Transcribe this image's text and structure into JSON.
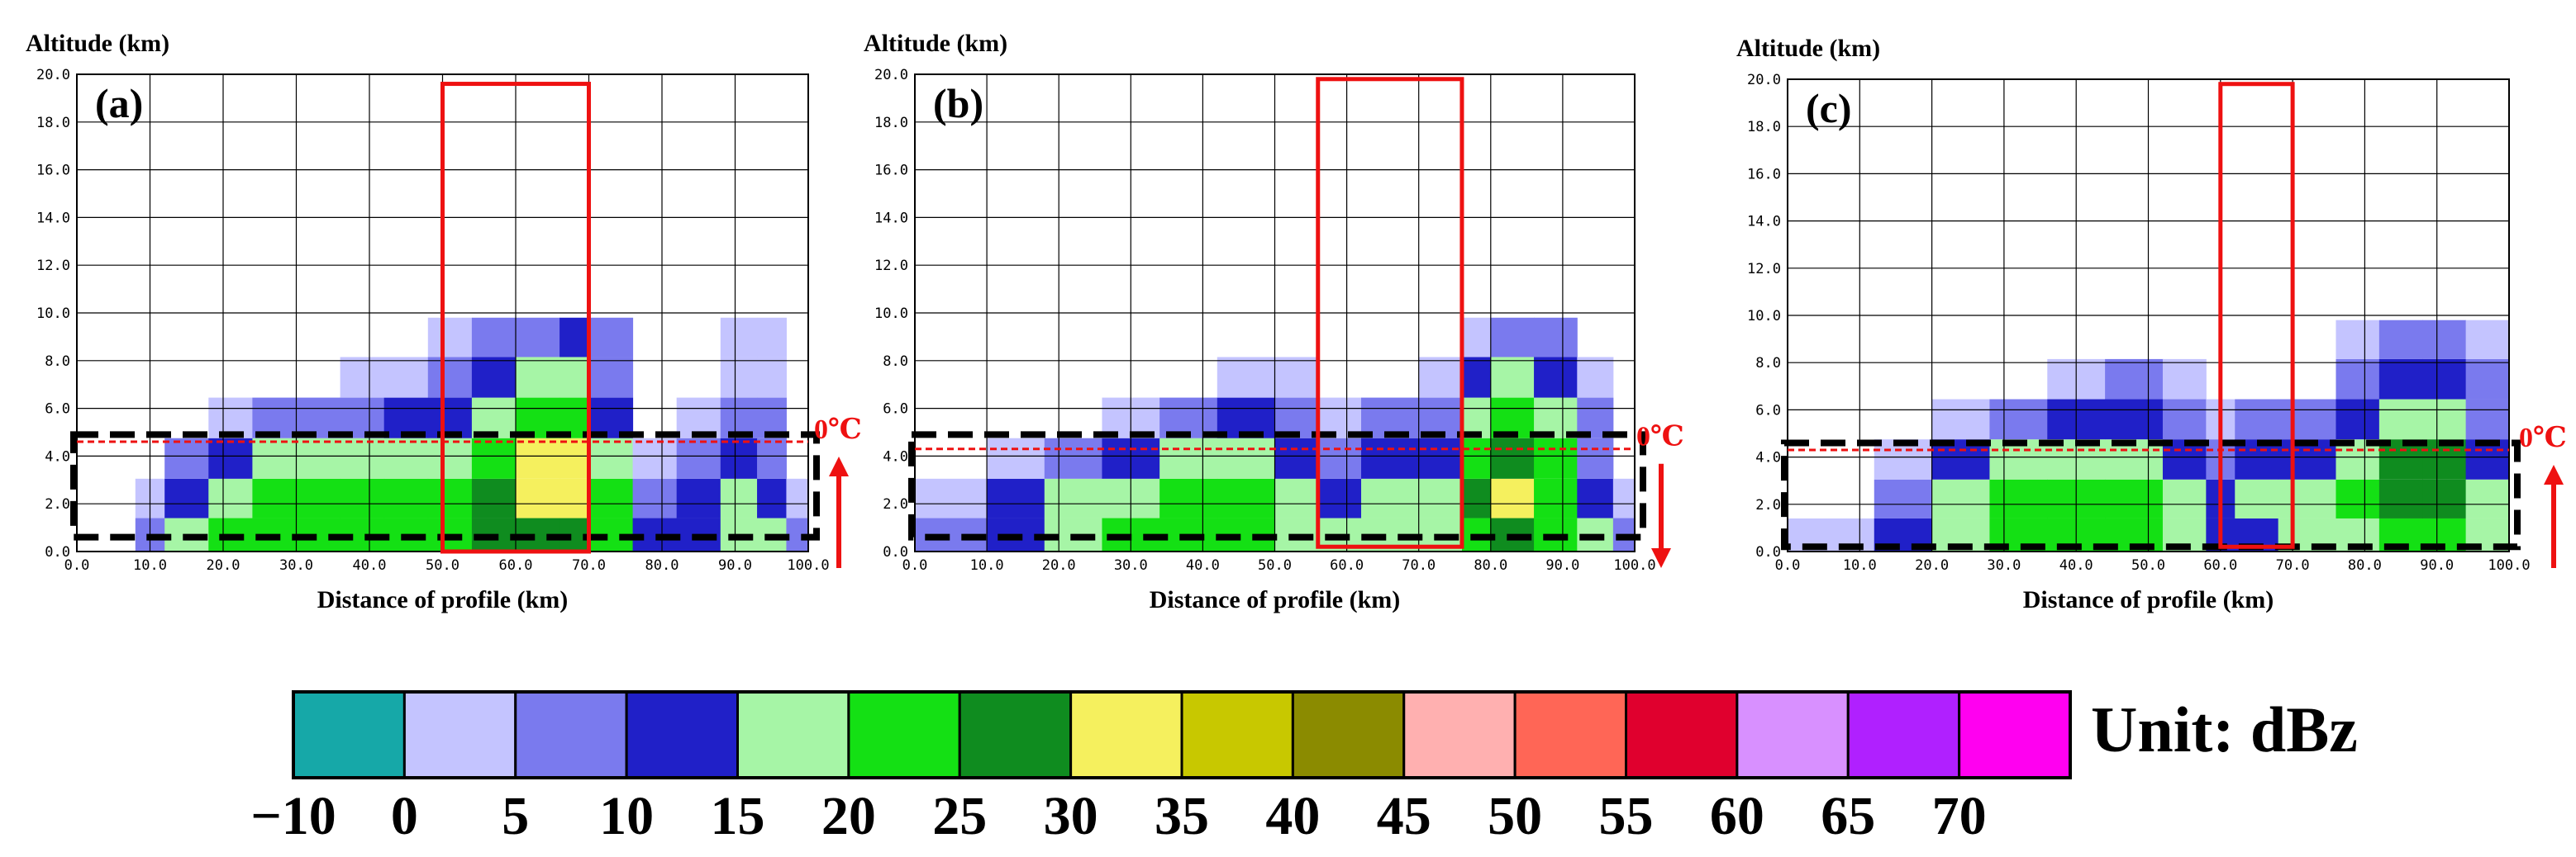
{
  "figure": {
    "unit_label": "Unit: dBz",
    "freezing_level_label": "0℃"
  },
  "chart_data": [
    {
      "type": "heatmap",
      "panel": "(a)",
      "ylabel": "Altitude (km)",
      "xlabel": "Distance of profile (km)",
      "xlim": [
        0,
        100
      ],
      "ylim": [
        0,
        20
      ],
      "x_ticks": [
        "0.0",
        "10.0",
        "20.0",
        "30.0",
        "40.0",
        "50.0",
        "60.0",
        "70.0",
        "80.0",
        "90.0",
        "100.0"
      ],
      "y_ticks": [
        "0.0",
        "2.0",
        "4.0",
        "6.0",
        "8.0",
        "10.0",
        "12.0",
        "14.0",
        "16.0",
        "18.0",
        "20.0"
      ],
      "grid": true,
      "freezing_level_km": 4.6,
      "red_box": {
        "x": [
          50,
          70
        ],
        "y": [
          0,
          19.6
        ]
      },
      "black_box": {
        "x": [
          0,
          100
        ],
        "y": [
          0.6,
          4.9
        ]
      },
      "arrow": "up",
      "reflectivity_dbz": [
        {
          "x": 0,
          "column": [
            0,
            0,
            0,
            0,
            0,
            0
          ]
        },
        {
          "x": 8,
          "column": [
            0,
            0,
            0,
            0,
            0,
            0
          ]
        },
        {
          "x": 12,
          "column": [
            10,
            5,
            0,
            0,
            0,
            0
          ]
        },
        {
          "x": 18,
          "column": [
            20,
            15,
            10,
            0,
            0,
            0
          ]
        },
        {
          "x": 24,
          "column": [
            20,
            20,
            15,
            5,
            0,
            0
          ]
        },
        {
          "x": 30,
          "column": [
            20,
            20,
            15,
            10,
            0,
            0
          ]
        },
        {
          "x": 36,
          "column": [
            20,
            20,
            15,
            5,
            0,
            0
          ]
        },
        {
          "x": 42,
          "column": [
            20,
            20,
            15,
            10,
            5,
            0
          ]
        },
        {
          "x": 48,
          "column": [
            20,
            20,
            15,
            10,
            0,
            0
          ]
        },
        {
          "x": 54,
          "column": [
            25,
            25,
            20,
            15,
            10,
            5
          ]
        },
        {
          "x": 60,
          "column": [
            25,
            30,
            25,
            20,
            15,
            5
          ]
        },
        {
          "x": 66,
          "column": [
            25,
            30,
            35,
            20,
            15,
            10
          ]
        },
        {
          "x": 70,
          "column": [
            25,
            30,
            25,
            20,
            15,
            10
          ]
        },
        {
          "x": 76,
          "column": [
            15,
            10,
            5,
            0,
            0,
            0
          ]
        },
        {
          "x": 82,
          "column": [
            10,
            5,
            0,
            0,
            0,
            0
          ]
        },
        {
          "x": 88,
          "column": [
            15,
            15,
            10,
            5,
            0,
            0
          ]
        },
        {
          "x": 93,
          "column": [
            20,
            20,
            15,
            10,
            5,
            5
          ]
        },
        {
          "x": 97,
          "column": [
            10,
            5,
            0,
            0,
            0,
            0
          ]
        },
        {
          "x": 100,
          "column": [
            0,
            0,
            0,
            0,
            0,
            0
          ]
        }
      ]
    },
    {
      "type": "heatmap",
      "panel": "(b)",
      "ylabel": "Altitude (km)",
      "xlabel": "Distance of profile (km)",
      "xlim": [
        0,
        100
      ],
      "ylim": [
        0,
        20
      ],
      "x_ticks": [
        "0.0",
        "10.0",
        "20.0",
        "30.0",
        "40.0",
        "50.0",
        "60.0",
        "70.0",
        "80.0",
        "90.0",
        "100.0"
      ],
      "y_ticks": [
        "0.0",
        "2.0",
        "4.0",
        "6.0",
        "8.0",
        "10.0",
        "12.0",
        "14.0",
        "16.0",
        "18.0",
        "20.0"
      ],
      "grid": true,
      "freezing_level_km": 4.3,
      "red_box": {
        "x": [
          56,
          76
        ],
        "y": [
          0.2,
          19.8
        ]
      },
      "black_box": {
        "x": [
          0,
          100
        ],
        "y": [
          0.6,
          4.9
        ]
      },
      "arrow": "down",
      "reflectivity_dbz": [
        {
          "x": 0,
          "column": [
            0,
            0,
            0,
            0,
            0,
            0
          ]
        },
        {
          "x": 10,
          "column": [
            10,
            5,
            0,
            0,
            0,
            0
          ]
        },
        {
          "x": 18,
          "column": [
            15,
            15,
            5,
            0,
            0,
            0
          ]
        },
        {
          "x": 26,
          "column": [
            20,
            15,
            10,
            0,
            0,
            0
          ]
        },
        {
          "x": 34,
          "column": [
            20,
            20,
            15,
            5,
            0,
            0
          ]
        },
        {
          "x": 42,
          "column": [
            20,
            20,
            15,
            10,
            0,
            0
          ]
        },
        {
          "x": 50,
          "column": [
            20,
            20,
            15,
            10,
            5,
            0
          ]
        },
        {
          "x": 56,
          "column": [
            15,
            10,
            5,
            0,
            0,
            0
          ]
        },
        {
          "x": 62,
          "column": [
            15,
            15,
            10,
            5,
            0,
            0
          ]
        },
        {
          "x": 70,
          "column": [
            15,
            15,
            10,
            5,
            0,
            0
          ]
        },
        {
          "x": 76,
          "column": [
            20,
            20,
            15,
            10,
            5,
            0
          ]
        },
        {
          "x": 80,
          "column": [
            25,
            35,
            30,
            20,
            15,
            5
          ]
        },
        {
          "x": 86,
          "column": [
            25,
            25,
            25,
            20,
            15,
            10
          ]
        },
        {
          "x": 92,
          "column": [
            20,
            20,
            15,
            10,
            5,
            0
          ]
        },
        {
          "x": 97,
          "column": [
            10,
            5,
            0,
            0,
            0,
            0
          ]
        },
        {
          "x": 100,
          "column": [
            0,
            0,
            0,
            0,
            0,
            0
          ]
        }
      ]
    },
    {
      "type": "heatmap",
      "panel": "(c)",
      "ylabel": "Altitude (km)",
      "xlabel": "Distance of profile (km)",
      "xlim": [
        0,
        100
      ],
      "ylim": [
        0,
        20
      ],
      "x_ticks": [
        "0.0",
        "10.0",
        "20.0",
        "30.0",
        "40.0",
        "50.0",
        "60.0",
        "70.0",
        "80.0",
        "90.0",
        "100.0"
      ],
      "y_ticks": [
        "0.0",
        "2.0",
        "4.0",
        "6.0",
        "8.0",
        "10.0",
        "12.0",
        "14.0",
        "16.0",
        "18.0",
        "20.0"
      ],
      "grid": true,
      "freezing_level_km": 4.3,
      "red_box": {
        "x": [
          60,
          70
        ],
        "y": [
          0.2,
          19.8
        ]
      },
      "black_box": {
        "x": [
          0,
          100
        ],
        "y": [
          0.2,
          4.6
        ]
      },
      "arrow": "up",
      "reflectivity_dbz": [
        {
          "x": 0,
          "column": [
            0,
            0,
            0,
            0,
            0,
            0
          ]
        },
        {
          "x": 12,
          "column": [
            5,
            0,
            0,
            0,
            0,
            0
          ]
        },
        {
          "x": 20,
          "column": [
            15,
            10,
            5,
            0,
            0,
            0
          ]
        },
        {
          "x": 28,
          "column": [
            20,
            20,
            15,
            5,
            0,
            0
          ]
        },
        {
          "x": 36,
          "column": [
            20,
            20,
            15,
            10,
            0,
            0
          ]
        },
        {
          "x": 44,
          "column": [
            20,
            20,
            20,
            10,
            5,
            0
          ]
        },
        {
          "x": 52,
          "column": [
            20,
            25,
            15,
            10,
            5,
            0
          ]
        },
        {
          "x": 58,
          "column": [
            15,
            10,
            5,
            0,
            0,
            0
          ]
        },
        {
          "x": 62,
          "column": [
            10,
            15,
            10,
            5,
            0,
            0
          ]
        },
        {
          "x": 68,
          "column": [
            15,
            15,
            10,
            5,
            0,
            0
          ]
        },
        {
          "x": 76,
          "column": [
            15,
            15,
            10,
            5,
            0,
            0
          ]
        },
        {
          "x": 82,
          "column": [
            20,
            25,
            20,
            15,
            10,
            5
          ]
        },
        {
          "x": 88,
          "column": [
            25,
            30,
            30,
            20,
            15,
            10
          ]
        },
        {
          "x": 94,
          "column": [
            20,
            25,
            20,
            15,
            10,
            5
          ]
        },
        {
          "x": 100,
          "column": [
            10,
            5,
            0,
            0,
            0,
            0
          ]
        }
      ]
    }
  ],
  "colorbar": {
    "levels": [
      -10,
      0,
      5,
      10,
      15,
      20,
      25,
      30,
      35,
      40,
      45,
      50,
      55,
      60,
      65,
      70
    ],
    "tick_labels": [
      "−10",
      "0",
      "5",
      "10",
      "15",
      "20",
      "25",
      "30",
      "35",
      "40",
      "45",
      "50",
      "55",
      "60",
      "65",
      "70"
    ],
    "colors": [
      "#16a8a8",
      "#c4c4ff",
      "#7a7aee",
      "#2020c8",
      "#a6f5a6",
      "#14e014",
      "#0f8c1f",
      "#f5f05e",
      "#c8c800",
      "#8b8b00",
      "#ffb0b0",
      "#ff6656",
      "#e0002e",
      "#d890ff",
      "#b020ff",
      "#ff00f0"
    ]
  },
  "colors": {
    "red_box": "#ee1111",
    "freezing_line": "#ee1111",
    "black_box": "#000000",
    "grid": "#000000"
  }
}
